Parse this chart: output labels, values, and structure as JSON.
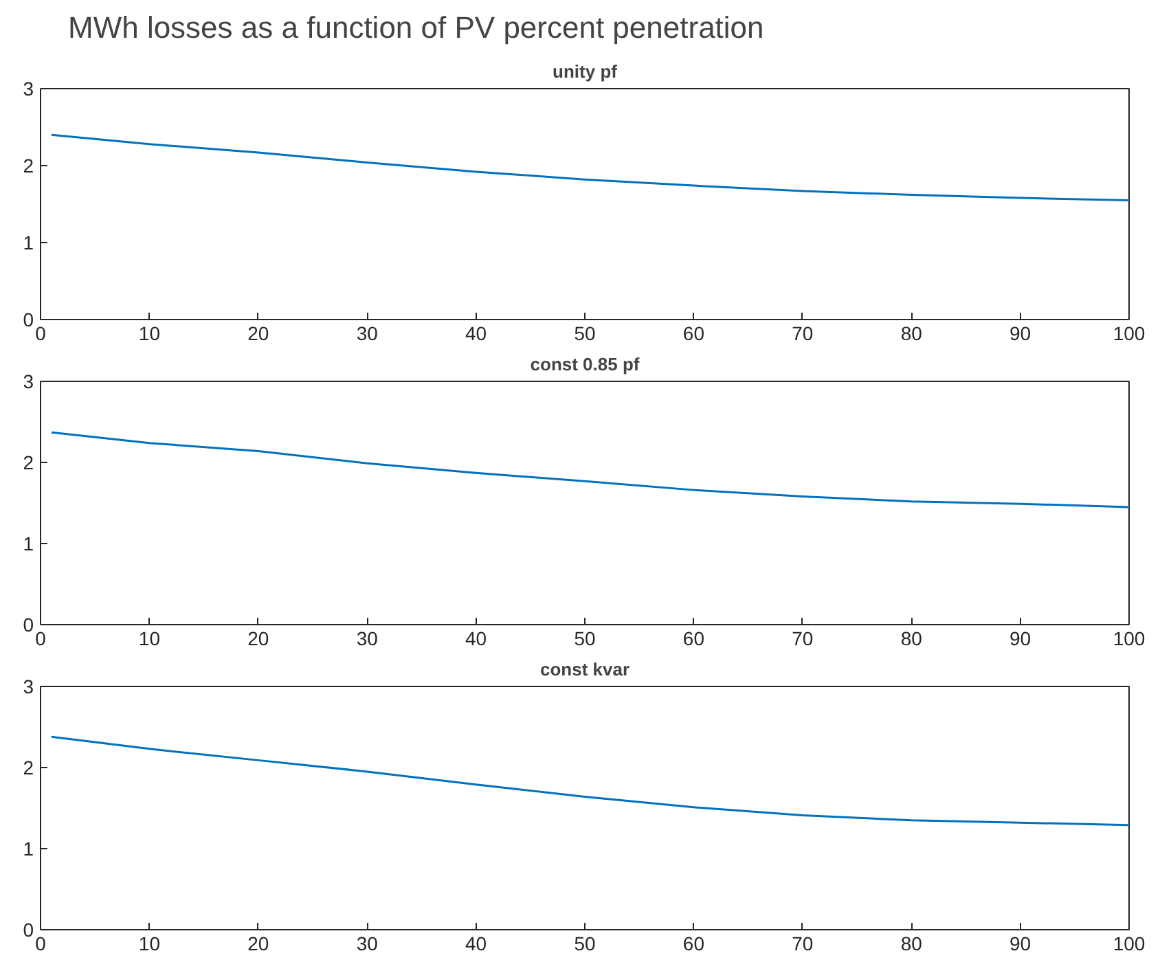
{
  "chart_data": [
    {
      "type": "line",
      "title": "MWh losses as a function of PV percent penetration",
      "subtitle": "unity pf",
      "x": [
        1,
        10,
        20,
        30,
        40,
        50,
        60,
        70,
        80,
        90,
        100
      ],
      "series": [
        {
          "color": "#0072bd",
          "values": [
            2.4,
            2.28,
            2.17,
            2.04,
            1.92,
            1.82,
            1.74,
            1.67,
            1.62,
            1.58,
            1.55
          ]
        }
      ],
      "xlim": [
        0,
        100
      ],
      "xticks": [
        0,
        10,
        20,
        30,
        40,
        50,
        60,
        70,
        80,
        90,
        100
      ],
      "ylim": [
        0,
        3
      ],
      "yticks": [
        0,
        1,
        2,
        3
      ]
    },
    {
      "type": "line",
      "title": "const 0.85 pf",
      "x": [
        1,
        10,
        20,
        30,
        40,
        50,
        60,
        70,
        80,
        90,
        100
      ],
      "series": [
        {
          "color": "#0072bd",
          "values": [
            2.37,
            2.24,
            2.14,
            1.99,
            1.87,
            1.77,
            1.66,
            1.58,
            1.52,
            1.49,
            1.45
          ]
        }
      ],
      "xlim": [
        0,
        100
      ],
      "xticks": [
        0,
        10,
        20,
        30,
        40,
        50,
        60,
        70,
        80,
        90,
        100
      ],
      "ylim": [
        0,
        3
      ],
      "yticks": [
        0,
        1,
        2,
        3
      ]
    },
    {
      "type": "line",
      "title": "const kvar",
      "x": [
        1,
        10,
        20,
        30,
        40,
        50,
        60,
        70,
        80,
        90,
        100
      ],
      "series": [
        {
          "color": "#0072bd",
          "values": [
            2.38,
            2.23,
            2.09,
            1.95,
            1.79,
            1.64,
            1.51,
            1.41,
            1.35,
            1.32,
            1.29
          ]
        }
      ],
      "xlim": [
        0,
        100
      ],
      "xticks": [
        0,
        10,
        20,
        30,
        40,
        50,
        60,
        70,
        80,
        90,
        100
      ],
      "ylim": [
        0,
        3
      ],
      "yticks": [
        0,
        1,
        2,
        3
      ]
    }
  ]
}
